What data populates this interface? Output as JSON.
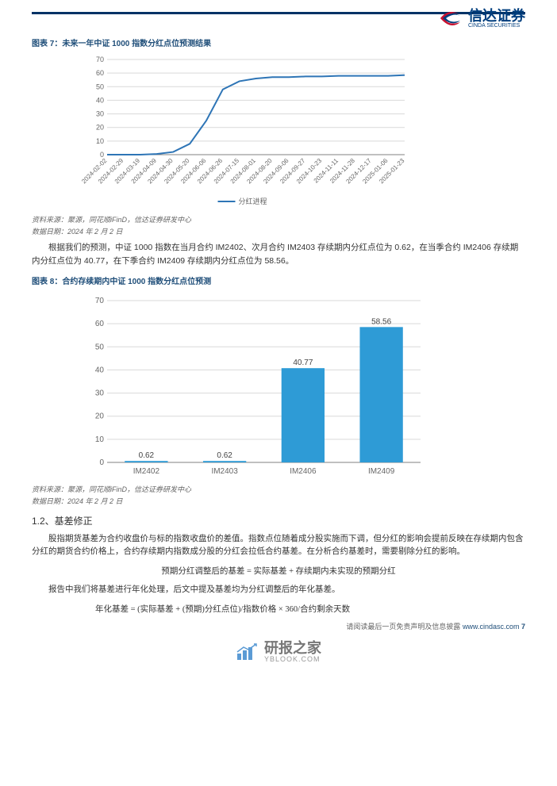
{
  "header": {
    "logo_cn": "信达证券",
    "logo_en": "CINDA SECURITIES"
  },
  "chart7": {
    "title": "图表 7：未来一年中证 1000 指数分红点位预测结果",
    "type": "line",
    "legend_label": "分红进程",
    "x_labels": [
      "2024-02-02",
      "2024-02-29",
      "2024-03-19",
      "2024-04-09",
      "2024-04-30",
      "2024-05-20",
      "2024-06-06",
      "2024-06-26",
      "2024-07-15",
      "2024-08-01",
      "2024-08-20",
      "2024-09-06",
      "2024-09-27",
      "2024-10-23",
      "2024-11-11",
      "2024-11-28",
      "2024-12-17",
      "2025-01-06",
      "2025-01-23"
    ],
    "y_values": [
      0,
      0,
      0,
      0.5,
      2,
      8,
      25,
      48,
      54,
      56,
      57,
      57,
      57.5,
      57.5,
      58,
      58,
      58,
      58,
      58.5
    ],
    "ylim": [
      0,
      70
    ],
    "ytick_step": 10,
    "line_color": "#2e75b6",
    "line_width": 2,
    "grid_color": "#d9d9d9",
    "label_fontsize": 8,
    "axis_color": "#808080"
  },
  "source1": {
    "line1": "资料来源：聚源，同花顺iFinD，信达证券研发中心",
    "line2": "数据日期：2024 年 2 月 2 日"
  },
  "para1": "根据我们的预测，中证 1000 指数在当月合约 IM2402、次月合约 IM2403 存续期内分红点位为 0.62，在当季合约 IM2406 存续期内分红点位为 40.77，在下季合约 IM2409 存续期内分红点位为 58.56。",
  "chart8": {
    "title": "图表 8：合约存续期内中证 1000 指数分红点位预测",
    "type": "bar",
    "categories": [
      "IM2402",
      "IM2403",
      "IM2406",
      "IM2409"
    ],
    "values": [
      0.62,
      0.62,
      40.77,
      58.56
    ],
    "show_labels": true,
    "bar_color": "#2e9bd6",
    "ylim": [
      0,
      70
    ],
    "ytick_step": 10,
    "grid_color": "#d9d9d9",
    "label_fontsize": 10,
    "bar_width_ratio": 0.55,
    "axis_color": "#808080"
  },
  "source2": {
    "line1": "资料来源：聚源，同花顺iFinD，信达证券研发中心",
    "line2": "数据日期：2024 年 2 月 2 日"
  },
  "section": {
    "heading": "1.2、基差修正",
    "para2": "股指期货基差为合约收盘价与标的指数收盘价的差值。指数点位随着成分股实施而下调，但分红的影响会提前反映在存续期内包含分红的期货合约价格上，合约存续期内指数成分股的分红会拉低合约基差。在分析合约基差时，需要剔除分红的影响。",
    "formula1": "预期分红调整后的基差 = 实际基差 + 存续期内未实现的预期分红",
    "para3": "报告中我们将基差进行年化处理，后文中提及基差均为分红调整后的年化基差。",
    "formula2": "年化基差 = (实际基差 + (预期)分红点位)/指数价格 × 360/合约剩余天数"
  },
  "footer": {
    "disclaimer": "请阅读最后一页免责声明及信息披露",
    "url": "www.cindasc.com",
    "page": "7",
    "logo_cn": "研报之家",
    "logo_en": "YBLOOK.COM"
  }
}
